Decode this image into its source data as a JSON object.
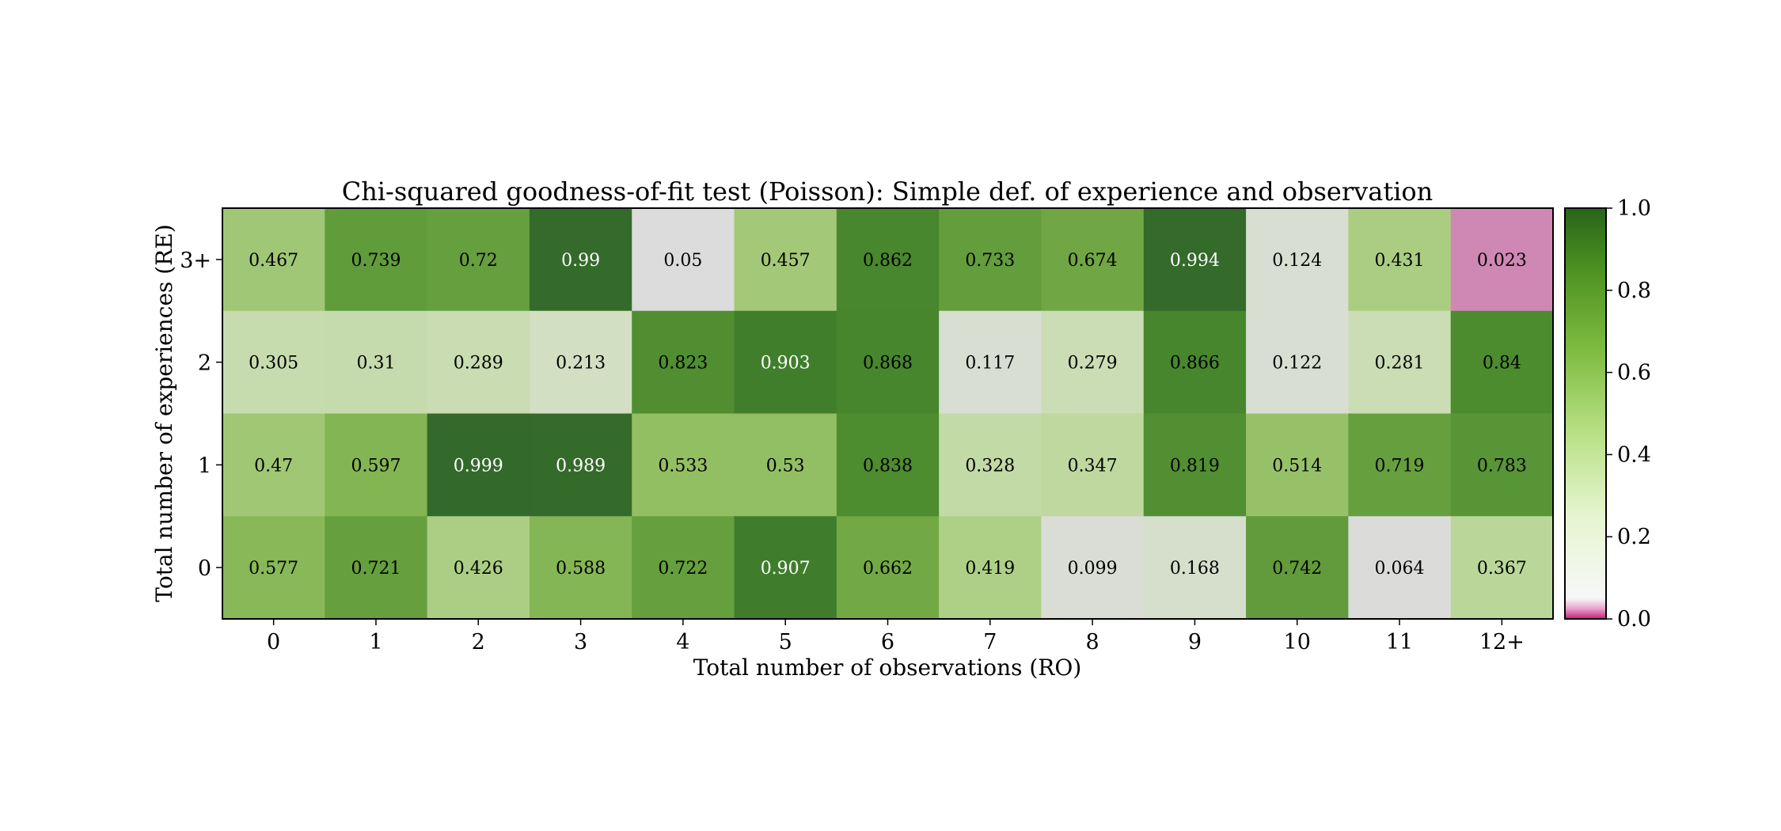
{
  "chart_data": {
    "type": "heatmap",
    "title": "Chi-squared goodness-of-fit test (Poisson): Simple def. of experience and observation",
    "xlabel": "Total number of observations (RO)",
    "ylabel": "Total number of experiences (RE)",
    "x_categories": [
      "0",
      "1",
      "2",
      "3",
      "4",
      "5",
      "6",
      "7",
      "8",
      "9",
      "10",
      "11",
      "12+"
    ],
    "y_categories": [
      "3+",
      "2",
      "1",
      "0"
    ],
    "values": [
      [
        0.467,
        0.739,
        0.72,
        0.99,
        0.05,
        0.457,
        0.862,
        0.733,
        0.674,
        0.994,
        0.124,
        0.431,
        0.023
      ],
      [
        0.305,
        0.31,
        0.289,
        0.213,
        0.823,
        0.903,
        0.868,
        0.117,
        0.279,
        0.866,
        0.122,
        0.281,
        0.84
      ],
      [
        0.47,
        0.597,
        0.999,
        0.989,
        0.533,
        0.53,
        0.838,
        0.328,
        0.347,
        0.819,
        0.514,
        0.719,
        0.783
      ],
      [
        0.577,
        0.721,
        0.426,
        0.588,
        0.722,
        0.907,
        0.662,
        0.419,
        0.099,
        0.168,
        0.742,
        0.064,
        0.367
      ]
    ],
    "colorbar": {
      "range": [
        0.0,
        1.0
      ],
      "ticks": [
        "0.0",
        "0.2",
        "0.4",
        "0.6",
        "0.8",
        "1.0"
      ],
      "colormap": "PiYG (pink below 0.05, green above)"
    },
    "colors": {
      "below_threshold": "#cf88b3",
      "neutral": "#f7f7f7",
      "green_dark": "#276419",
      "green_mid": "#7fbc41",
      "green_light": "#b8e186"
    }
  }
}
